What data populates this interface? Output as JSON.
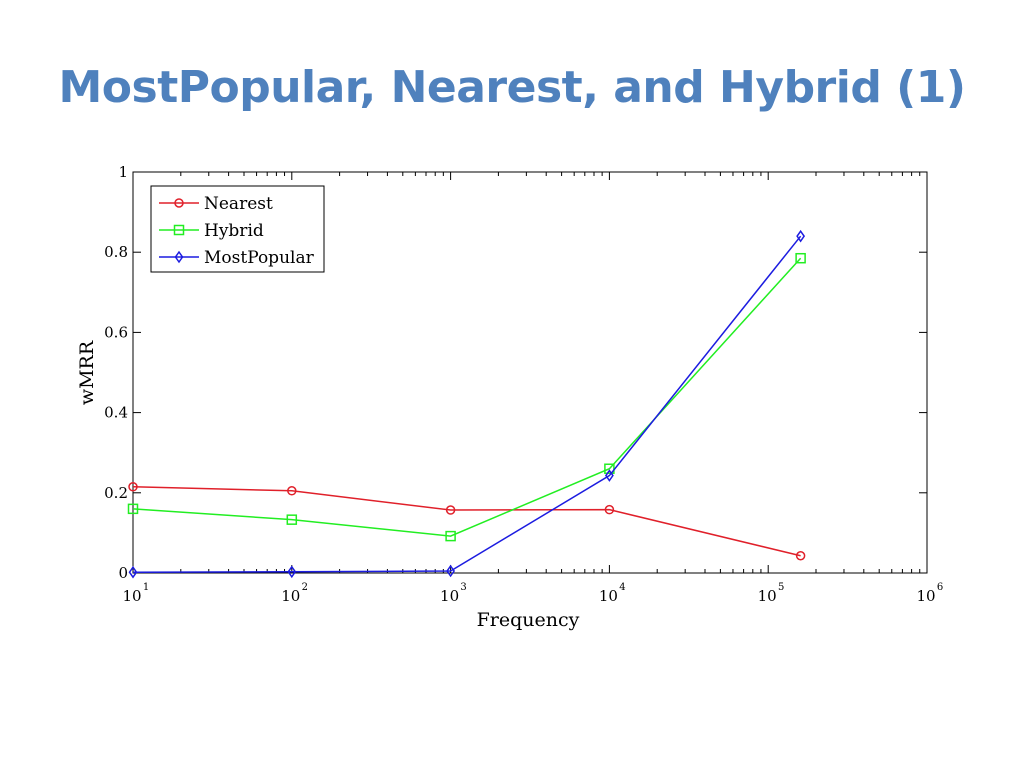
{
  "slide": {
    "title": "MostPopular, Nearest, and Hybrid (1)"
  },
  "chart_data": {
    "type": "line",
    "title": "",
    "xlabel": "Frequency",
    "ylabel": "wMRR",
    "xscale": "log",
    "xlim": [
      10,
      1000000
    ],
    "ylim": [
      0,
      1
    ],
    "x_ticks": [
      {
        "base": "10",
        "exp": "1"
      },
      {
        "base": "10",
        "exp": "2"
      },
      {
        "base": "10",
        "exp": "3"
      },
      {
        "base": "10",
        "exp": "4"
      },
      {
        "base": "10",
        "exp": "5"
      },
      {
        "base": "10",
        "exp": "6"
      }
    ],
    "y_ticks": [
      "0",
      "0.2",
      "0.4",
      "0.6",
      "0.8",
      "1"
    ],
    "legend_position": "top-left",
    "grid": false,
    "series": [
      {
        "name": "Nearest",
        "color": "#e0202a",
        "marker": "circle",
        "x": [
          10,
          100,
          1000,
          10000,
          160000
        ],
        "y": [
          0.215,
          0.205,
          0.157,
          0.158,
          0.043
        ]
      },
      {
        "name": "Hybrid",
        "color": "#22ee22",
        "marker": "square",
        "x": [
          10,
          100,
          1000,
          10000,
          160000
        ],
        "y": [
          0.16,
          0.133,
          0.092,
          0.26,
          0.785
        ]
      },
      {
        "name": "MostPopular",
        "color": "#1c1ce0",
        "marker": "diamond",
        "x": [
          10,
          100,
          1000,
          10000,
          160000
        ],
        "y": [
          0.002,
          0.003,
          0.005,
          0.243,
          0.84
        ]
      }
    ]
  }
}
